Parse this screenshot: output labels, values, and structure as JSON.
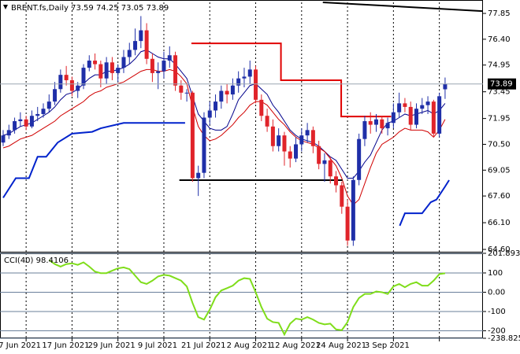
{
  "chart_data": [
    {
      "type": "candlestick",
      "title": "BRENT.fs,Daily",
      "up_color": "#1f2fa8",
      "down_color": "#e0242a",
      "x": [
        0,
        1,
        2,
        3,
        4,
        5,
        6,
        7,
        8,
        9,
        10,
        11,
        12,
        13,
        14,
        15,
        16,
        17,
        18,
        19,
        20,
        21,
        22,
        23,
        24,
        25,
        26,
        27,
        28,
        29,
        30,
        31,
        32,
        33,
        34,
        35,
        36,
        37,
        38,
        39,
        40,
        41,
        42,
        43,
        44,
        45,
        46,
        47,
        48,
        49,
        50,
        51,
        52,
        53,
        54,
        55,
        56,
        57,
        58,
        59,
        60,
        61,
        62,
        63,
        64,
        65,
        66,
        67,
        68,
        69,
        70,
        71,
        72,
        73,
        74,
        75,
        76,
        77
      ],
      "open": [
        70.6,
        71.0,
        71.3,
        71.8,
        71.9,
        71.5,
        72.1,
        72.2,
        72.5,
        72.9,
        73.6,
        74.4,
        74.1,
        73.5,
        73.8,
        74.8,
        75.2,
        75.0,
        74.2,
        75.1,
        74.5,
        74.8,
        75.4,
        75.8,
        76.3,
        76.9,
        75.3,
        74.5,
        74.6,
        75.2,
        75.5,
        73.8,
        73.4,
        73.4,
        68.6,
        68.9,
        72.0,
        72.4,
        72.9,
        73.5,
        73.3,
        73.8,
        74.2,
        74.3,
        74.7,
        73.0,
        72.1,
        71.5,
        70.4,
        71.0,
        70.1,
        69.7,
        70.5,
        71.0,
        71.3,
        70.4,
        69.4,
        69.6,
        68.7,
        68.2,
        67.0,
        65.1,
        68.5,
        70.8,
        71.8,
        71.6,
        71.9,
        71.4,
        71.7,
        72.3,
        72.8,
        72.6,
        71.6,
        72.5,
        72.7,
        72.9,
        71.1,
        73.59
      ],
      "high": [
        71.3,
        71.6,
        72.0,
        72.3,
        72.1,
        72.4,
        72.6,
        72.8,
        73.3,
        74.0,
        74.7,
        74.9,
        74.3,
        74.0,
        75.0,
        75.5,
        75.6,
        75.2,
        75.4,
        75.4,
        75.0,
        75.8,
        76.2,
        77.0,
        77.7,
        77.3,
        75.6,
        75.1,
        75.7,
        76.0,
        75.7,
        74.1,
        73.6,
        73.5,
        69.3,
        72.3,
        72.9,
        73.3,
        73.8,
        73.9,
        74.2,
        74.6,
        74.8,
        75.2,
        74.9,
        73.3,
        72.5,
        71.9,
        71.4,
        71.2,
        70.4,
        70.9,
        71.4,
        71.7,
        71.5,
        70.7,
        70.0,
        69.8,
        69.0,
        68.4,
        67.4,
        68.7,
        71.1,
        72.1,
        72.3,
        72.2,
        72.1,
        72.0,
        72.8,
        73.4,
        73.1,
        72.9,
        72.8,
        73.1,
        73.2,
        73.0,
        73.4,
        74.25
      ],
      "low": [
        70.4,
        70.8,
        71.1,
        71.5,
        71.3,
        71.4,
        71.8,
        72.0,
        72.3,
        72.7,
        73.4,
        73.8,
        73.2,
        73.1,
        73.6,
        74.6,
        74.7,
        73.7,
        73.9,
        74.1,
        74.0,
        74.5,
        75.0,
        75.5,
        75.9,
        75.0,
        74.0,
        73.6,
        74.2,
        74.8,
        73.5,
        73.0,
        72.9,
        68.4,
        67.6,
        68.6,
        71.6,
        72.0,
        72.5,
        72.8,
        73.0,
        73.4,
        73.7,
        73.9,
        72.8,
        71.8,
        71.2,
        70.1,
        70.1,
        69.3,
        69.2,
        69.5,
        70.1,
        70.6,
        70.0,
        69.1,
        68.4,
        68.3,
        67.8,
        66.6,
        64.8,
        64.8,
        68.2,
        70.4,
        71.1,
        71.2,
        71.1,
        71.0,
        71.4,
        72.0,
        72.3,
        71.3,
        71.4,
        72.2,
        72.2,
        70.9,
        70.9,
        73.05
      ],
      "close": [
        71.0,
        71.3,
        71.8,
        71.9,
        71.5,
        72.1,
        72.2,
        72.5,
        72.9,
        73.6,
        74.4,
        74.1,
        73.5,
        73.8,
        74.8,
        75.2,
        75.0,
        74.2,
        75.1,
        74.5,
        74.8,
        75.4,
        75.8,
        76.3,
        76.9,
        75.3,
        74.5,
        74.6,
        75.2,
        75.5,
        73.8,
        73.4,
        73.4,
        68.6,
        68.9,
        72.0,
        72.4,
        72.9,
        73.5,
        73.3,
        73.8,
        74.2,
        74.3,
        74.7,
        73.0,
        72.1,
        71.5,
        70.4,
        71.0,
        70.1,
        69.7,
        70.5,
        71.0,
        71.3,
        70.4,
        69.4,
        69.6,
        68.7,
        68.2,
        67.0,
        65.1,
        68.5,
        70.8,
        71.8,
        71.6,
        71.9,
        71.4,
        71.7,
        72.3,
        72.8,
        72.6,
        71.6,
        72.5,
        72.7,
        72.9,
        71.1,
        73.2,
        73.89
      ],
      "lines": [
        {
          "color": "#00008b",
          "width": 1,
          "values": [
            71.0,
            71.1,
            71.3,
            71.5,
            71.6,
            71.7,
            71.9,
            72.1,
            72.3,
            72.6,
            73.0,
            73.3,
            73.4,
            73.6,
            73.9,
            74.2,
            74.4,
            74.4,
            74.6,
            74.6,
            74.7,
            74.8,
            75.0,
            75.3,
            75.7,
            75.8,
            75.6,
            75.4,
            75.3,
            75.3,
            75.0,
            74.6,
            74.2,
            73.2,
            72.2,
            71.8,
            71.4,
            71.3,
            71.3,
            71.5,
            72.2,
            73.0,
            73.4,
            73.8,
            73.9,
            73.6,
            73.3,
            72.7,
            72.3,
            71.8,
            71.3,
            71.0,
            70.8,
            70.7,
            70.6,
            70.4,
            70.1,
            69.8,
            69.6,
            69.1,
            68.6,
            68.6,
            69.0,
            69.5,
            69.9,
            70.6,
            71.3,
            71.7,
            71.8,
            72.0,
            72.2,
            72.1,
            72.2,
            72.3,
            72.4,
            72.2,
            72.4,
            72.8
          ]
        },
        {
          "color": "#d00000",
          "width": 1,
          "values": [
            70.3,
            70.4,
            70.6,
            70.8,
            70.9,
            71.0,
            71.2,
            71.4,
            71.6,
            71.8,
            72.1,
            72.3,
            72.5,
            72.7,
            72.9,
            73.2,
            73.4,
            73.5,
            73.7,
            73.8,
            73.9,
            74.0,
            74.2,
            74.4,
            74.6,
            74.7,
            74.7,
            74.6,
            74.6,
            74.7,
            74.6,
            74.3,
            73.9,
            72.6,
            71.5,
            71.0,
            70.7,
            70.8,
            71.0,
            71.3,
            71.6,
            72.0,
            72.3,
            72.7,
            72.9,
            72.9,
            72.7,
            72.3,
            71.9,
            71.6,
            71.2,
            70.9,
            70.7,
            70.6,
            70.5,
            70.3,
            70.1,
            69.7,
            69.3,
            68.6,
            67.6,
            67.1,
            67.4,
            68.3,
            69.2,
            70.0,
            70.5,
            70.7,
            70.9,
            71.2,
            71.4,
            71.3,
            71.3,
            71.3,
            71.2,
            70.9,
            71.3,
            71.9
          ]
        },
        {
          "color": "#e00000",
          "width": 2,
          "x": [
            32.8,
            48.4,
            48.4,
            58.9,
            58.9,
            67.6
          ],
          "values": [
            76.17,
            76.17,
            74.1,
            74.1,
            72.06,
            72.06
          ]
        },
        {
          "color": "#0022cc",
          "width": 2,
          "x": [
            0,
            2.2,
            4.5,
            6,
            7.5,
            9.5,
            12,
            15.5,
            17,
            21,
            31.7
          ],
          "values": [
            67.5,
            68.6,
            68.6,
            69.8,
            69.8,
            70.6,
            71.1,
            71.2,
            71.4,
            71.7,
            71.7
          ]
        },
        {
          "color": "#0022cc",
          "width": 2,
          "x": [
            69.1,
            70,
            73,
            74.5,
            75.5,
            77,
            77.7
          ],
          "values": [
            65.93,
            66.63,
            66.63,
            67.25,
            67.4,
            68.13,
            68.49
          ]
        },
        {
          "color": "#000000",
          "width": 2,
          "x": [
            30.7,
            59.1
          ],
          "values": [
            68.49,
            68.49
          ]
        },
        {
          "color": "#000000",
          "width": 2,
          "x": [
            55.7,
            83.5
          ],
          "values": [
            78.47,
            77.98
          ]
        }
      ],
      "xlim": [
        -0.55,
        83.6
      ],
      "ylim": [
        64.47,
        78.47
      ],
      "yticks": [
        77.85,
        {
          "value": 76.4,
          "label": "76.40"
        },
        74.95,
        73.45,
        71.95,
        {
          "value": 70.5,
          "label": "70.50"
        },
        69.05,
        {
          "value": 67.6,
          "label": "67.60"
        },
        {
          "value": 66.1,
          "label": "66.10"
        },
        {
          "value": 64.6,
          "label": "64.60"
        }
      ],
      "xticks": [
        {
          "value": 4,
          "label": "7 Jun 2021"
        },
        {
          "value": 12,
          "label": "17 Jun 2021"
        },
        {
          "value": 20,
          "label": "29 Jun 2021"
        },
        {
          "value": 28,
          "label": "9 Jul 2021"
        },
        {
          "value": 36,
          "label": "21 Jul 2021"
        },
        {
          "value": 44,
          "label": "2 Aug 2021"
        },
        {
          "value": 52,
          "label": "12 Aug 2021"
        },
        {
          "value": 60,
          "label": "24 Aug 2021"
        },
        {
          "value": 68,
          "label": "3 Sep 2021"
        },
        {
          "value": 76,
          "label": null
        }
      ]
    },
    {
      "type": "line",
      "title": "CCI(40)",
      "color": "#7fdd1a",
      "x": [
        0,
        1,
        2,
        3,
        4,
        5,
        6,
        7,
        8,
        9,
        10,
        11,
        12,
        13,
        14,
        15,
        16,
        17,
        18,
        19,
        20,
        21,
        22,
        23,
        24,
        25,
        26,
        27,
        28,
        29,
        30,
        31,
        32,
        33,
        34,
        35,
        36,
        37,
        38,
        39,
        40,
        41,
        42,
        43,
        44,
        45,
        46,
        47,
        48,
        49,
        50,
        51,
        52,
        53,
        54,
        55,
        56,
        57,
        58,
        59,
        60,
        61,
        62,
        63,
        64,
        65,
        66,
        67,
        68,
        69,
        70,
        71,
        72,
        73,
        74,
        75,
        76,
        77
      ],
      "values": [
        null,
        null,
        null,
        null,
        null,
        null,
        null,
        null,
        167,
        146,
        133,
        146,
        150,
        142,
        155,
        133,
        107,
        99,
        99,
        112,
        124,
        129,
        120,
        86,
        52,
        43,
        60,
        82,
        90,
        86,
        73,
        60,
        30,
        -56,
        -129,
        -142,
        -90,
        -26,
        9,
        21,
        34,
        60,
        73,
        69,
        0,
        -77,
        -137,
        -155,
        -159,
        -219,
        -163,
        -137,
        -142,
        -129,
        -142,
        -159,
        -167,
        -163,
        -193,
        -197,
        -155,
        -77,
        -30,
        -9,
        -9,
        4,
        0,
        -9,
        30,
        43,
        26,
        43,
        52,
        34,
        34,
        60,
        94,
        98.4106
      ],
      "xlim": [
        -0.55,
        83.6
      ],
      "ylim": [
        -238.825,
        201.8937
      ],
      "yticks": [
        201.8937,
        100,
        {
          "value": 0,
          "label": "0.00"
        },
        -100,
        -200,
        -238.825
      ]
    }
  ]
}
